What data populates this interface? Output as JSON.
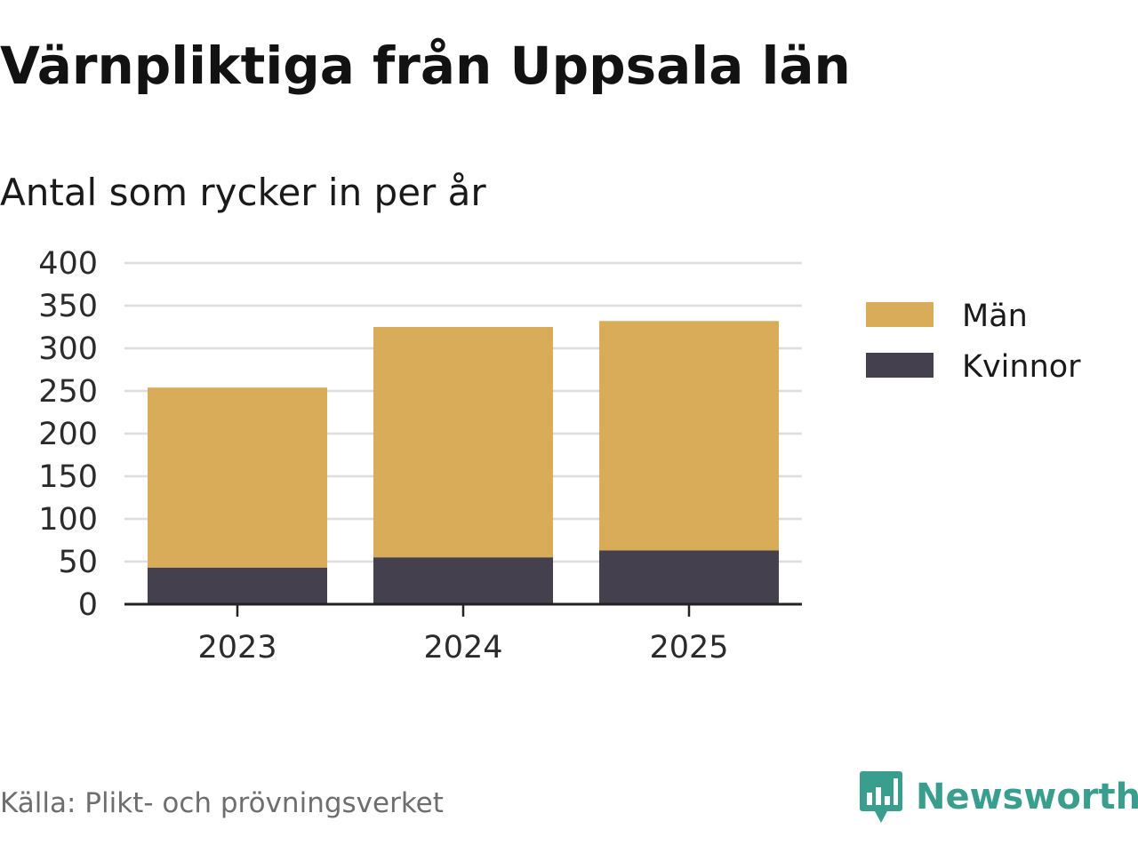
{
  "title": "Värnpliktiga från Uppsala län",
  "subtitle": "Antal som rycker in per år",
  "source": "Källa: Plikt- och prövningsverket",
  "logo_text": "Newsworthy",
  "chart_data": {
    "type": "bar",
    "stacked": true,
    "categories": [
      "2023",
      "2024",
      "2025"
    ],
    "series": [
      {
        "name": "Kvinnor",
        "values": [
          43,
          55,
          63
        ],
        "color": "#44404e"
      },
      {
        "name": "Män",
        "values": [
          211,
          270,
          269
        ],
        "color": "#d9ac5a"
      }
    ],
    "legend": [
      "Män",
      "Kvinnor"
    ],
    "legend_position": "right",
    "ylim": [
      0,
      400
    ],
    "yticks": [
      0,
      50,
      100,
      150,
      200,
      250,
      300,
      350,
      400
    ],
    "grid": true,
    "xlabel": "",
    "ylabel": ""
  }
}
